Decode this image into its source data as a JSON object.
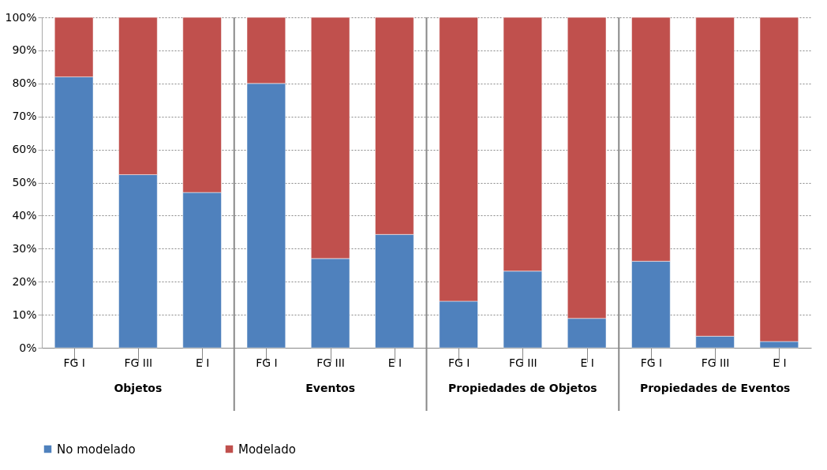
{
  "chart_data": {
    "type": "bar",
    "stacked": true,
    "categories": [
      "FG I",
      "FG III",
      "E I",
      "FG I",
      "FG III",
      "E I",
      "FG I",
      "FG III",
      "E I",
      "FG I",
      "FG III",
      "E I"
    ],
    "series": [
      {
        "name": "No modelado",
        "color": "#4f81bd",
        "values": [
          82,
          52.4,
          47,
          80,
          27,
          34.3,
          14.1,
          23.2,
          8.9,
          26.2,
          3.5,
          1.9
        ]
      },
      {
        "name": "Modelado",
        "color": "#c0504d",
        "values": [
          18,
          47.6,
          53,
          20,
          73,
          65.7,
          85.9,
          76.8,
          91.1,
          73.8,
          96.5,
          98.1
        ]
      }
    ],
    "annotations": [
      "Objetos",
      "Eventos",
      "Propiedades de Objetos",
      "Propiedades de Eventos"
    ],
    "ylim": [
      0,
      100
    ],
    "yticks": [
      {
        "value": 0,
        "label": "0%"
      },
      {
        "value": 10,
        "label": "10%"
      },
      {
        "value": 20,
        "label": "20%"
      },
      {
        "value": 30,
        "label": "30%"
      },
      {
        "value": 40,
        "label": "40%"
      },
      {
        "value": 50,
        "label": "50%"
      },
      {
        "value": 60,
        "label": "60%"
      },
      {
        "value": 70,
        "label": "70%"
      },
      {
        "value": 80,
        "label": "80%"
      },
      {
        "value": 90,
        "label": "90%"
      },
      {
        "value": 100,
        "label": "100%"
      }
    ],
    "grid": "y",
    "legend": "bottom"
  }
}
